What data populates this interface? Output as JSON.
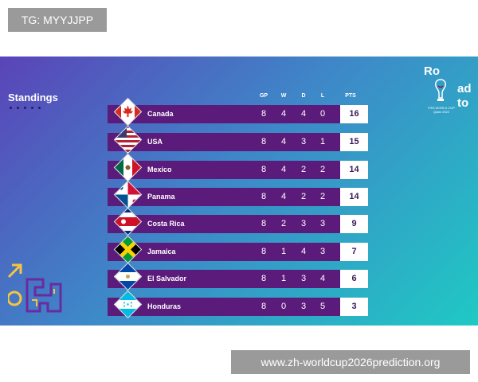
{
  "watermark_top": "TG: MYYJJPP",
  "watermark_bottom": "www.zh-worldcup2026prediction.org",
  "standings": {
    "title": "Standings",
    "columns": [
      "GP",
      "W",
      "D",
      "L",
      "PTS"
    ],
    "rows": [
      {
        "team": "Canada",
        "gp": "8",
        "w": "4",
        "d": "4",
        "l": "0",
        "pts": "16",
        "flag": "canada"
      },
      {
        "team": "USA",
        "gp": "8",
        "w": "4",
        "d": "3",
        "l": "1",
        "pts": "15",
        "flag": "usa"
      },
      {
        "team": "Mexico",
        "gp": "8",
        "w": "4",
        "d": "2",
        "l": "2",
        "pts": "14",
        "flag": "mexico"
      },
      {
        "team": "Panama",
        "gp": "8",
        "w": "4",
        "d": "2",
        "l": "2",
        "pts": "14",
        "flag": "panama"
      },
      {
        "team": "Costa Rica",
        "gp": "8",
        "w": "2",
        "d": "3",
        "l": "3",
        "pts": "9",
        "flag": "costa-rica"
      },
      {
        "team": "Jamaica",
        "gp": "8",
        "w": "1",
        "d": "4",
        "l": "3",
        "pts": "7",
        "flag": "jamaica"
      },
      {
        "team": "El Salvador",
        "gp": "8",
        "w": "1",
        "d": "3",
        "l": "4",
        "pts": "6",
        "flag": "el-salvador"
      },
      {
        "team": "Honduras",
        "gp": "8",
        "w": "0",
        "d": "3",
        "l": "5",
        "pts": "3",
        "flag": "honduras"
      }
    ]
  },
  "logo": {
    "line1": "Ro",
    "line2": "ad",
    "line3": "to",
    "sub": "FIFA WORLD CUP Qatar 2022"
  },
  "colors": {
    "row_bar": "#5b1b7a",
    "pts_text": "#3b1a5a",
    "gradient_start": "#5a44b8",
    "gradient_end": "#1fc9c4"
  }
}
